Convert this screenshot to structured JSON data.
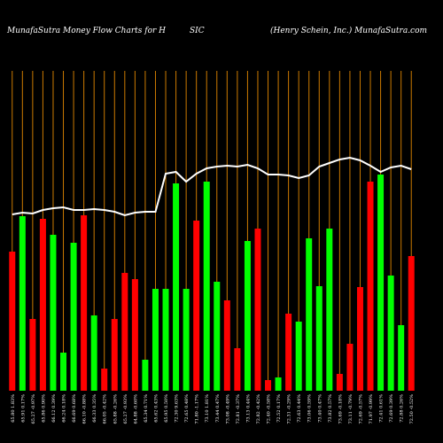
{
  "chart_data": {
    "type": "bar",
    "title": "MunafaSutra  Money Flow  Charts for H",
    "ticker": "SIC",
    "subtitle": "(Henry Schein, Inc.) MunafaSutra.com",
    "categories": [
      "65.80 1.83%",
      "65.91 0.17%",
      "65.27 -0.97%",
      "65.86 0.90%",
      "66.12 0.39%",
      "66.24 0.18%",
      "66.69 0.68%",
      "66.10 -0.88%",
      "66.33 0.35%",
      "66.05 -0.42%",
      "65.88 -0.26%",
      "65.27 -0.93%",
      "64.88 -0.60%",
      "65.34 0.71%",
      "65.62 0.43%",
      "65.95 0.50%",
      "72.30 9.63%",
      "72.65 0.48%",
      "71.80 -1.17%",
      "73.10 1.81%",
      "73.44 0.47%",
      "73.08 -0.49%",
      "72.81 -0.37%",
      "73.13 0.44%",
      "72.82 -0.42%",
      "72.40 -0.58%",
      "72.52 0.17%",
      "72.31 -0.29%",
      "72.63 0.44%",
      "73.06 0.59%",
      "73.40 0.47%",
      "73.82 0.57%",
      "73.69 -0.18%",
      "73.11 -0.79%",
      "72.69 -0.57%",
      "71.97 -0.99%",
      "72.41 0.61%",
      "72.69 0.39%",
      "72.88 0.26%",
      "72.50 -0.52%"
    ],
    "values": [
      157,
      197,
      81,
      194,
      176,
      43,
      167,
      198,
      85,
      25,
      81,
      133,
      126,
      35,
      115,
      115,
      234,
      115,
      192,
      236,
      123,
      102,
      48,
      169,
      183,
      12,
      15,
      87,
      78,
      172,
      118,
      183,
      19,
      53,
      117,
      236,
      244,
      130,
      74,
      152
    ],
    "colors": [
      "#ff0000",
      "#00ff00",
      "#ff0000",
      "#ff0000",
      "#00ff00",
      "#00ff00",
      "#00ff00",
      "#ff0000",
      "#00ff00",
      "#ff0000",
      "#ff0000",
      "#ff0000",
      "#ff0000",
      "#00ff00",
      "#00ff00",
      "#00ff00",
      "#00ff00",
      "#00ff00",
      "#ff0000",
      "#00ff00",
      "#00ff00",
      "#ff0000",
      "#ff0000",
      "#00ff00",
      "#ff0000",
      "#ff0000",
      "#00ff00",
      "#ff0000",
      "#00ff00",
      "#00ff00",
      "#00ff00",
      "#00ff00",
      "#ff0000",
      "#ff0000",
      "#ff0000",
      "#ff0000",
      "#00ff00",
      "#00ff00",
      "#00ff00",
      "#ff0000"
    ],
    "line_values": [
      199,
      201,
      200,
      204,
      206,
      207,
      204,
      204,
      205,
      204,
      202,
      198,
      201,
      202,
      202,
      245,
      247,
      236,
      245,
      251,
      253,
      254,
      253,
      255,
      251,
      244,
      244,
      243,
      240,
      243,
      253,
      257,
      261,
      263,
      260,
      254,
      247,
      252,
      254,
      250
    ],
    "ylim": [
      0,
      361
    ]
  }
}
